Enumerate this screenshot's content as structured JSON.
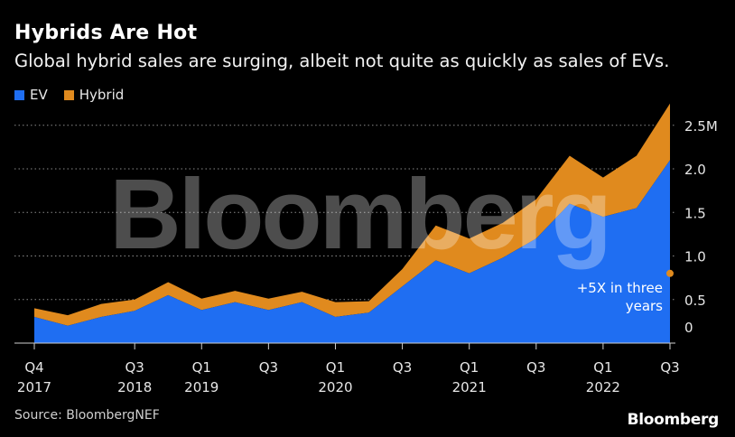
{
  "header": {
    "title": "Hybrids Are Hot",
    "subtitle": "Global hybrid sales are surging, albeit not quite as quickly as sales of EVs."
  },
  "legend": [
    {
      "label": "EV",
      "color": "#1f6ef2"
    },
    {
      "label": "Hybrid",
      "color": "#e08a1e"
    }
  ],
  "footer": {
    "source": "Source: BloombergNEF",
    "brand": "Bloomberg"
  },
  "watermark": "Bloomberg",
  "chart_data": {
    "type": "area",
    "stacked": true,
    "x": [
      "Q4 2017",
      "Q1 2018",
      "Q2 2018",
      "Q3 2018",
      "Q4 2018",
      "Q1 2019",
      "Q2 2019",
      "Q3 2019",
      "Q4 2019",
      "Q1 2020",
      "Q2 2020",
      "Q3 2020",
      "Q4 2020",
      "Q1 2021",
      "Q2 2021",
      "Q3 2021",
      "Q4 2021",
      "Q1 2022",
      "Q2 2022",
      "Q3 2022"
    ],
    "x_tick_labels": [
      {
        "x": "Q4 2017",
        "top": "Q4",
        "bottom": "2017"
      },
      {
        "x": "Q3 2018",
        "top": "Q3",
        "bottom": "2018"
      },
      {
        "x": "Q1 2019",
        "top": "Q1",
        "bottom": "2019"
      },
      {
        "x": "Q3 2019",
        "top": "Q3",
        "bottom": ""
      },
      {
        "x": "Q1 2020",
        "top": "Q1",
        "bottom": "2020"
      },
      {
        "x": "Q3 2020",
        "top": "Q3",
        "bottom": ""
      },
      {
        "x": "Q1 2021",
        "top": "Q1",
        "bottom": "2021"
      },
      {
        "x": "Q3 2021",
        "top": "Q3",
        "bottom": ""
      },
      {
        "x": "Q1 2022",
        "top": "Q1",
        "bottom": "2022"
      },
      {
        "x": "Q3 2022",
        "top": "Q3",
        "bottom": ""
      }
    ],
    "series": [
      {
        "name": "EV",
        "color": "#1f6ef2",
        "values": [
          0.3,
          0.2,
          0.3,
          0.37,
          0.55,
          0.38,
          0.47,
          0.38,
          0.47,
          0.3,
          0.35,
          0.65,
          0.95,
          0.8,
          0.98,
          1.2,
          1.6,
          1.45,
          1.55,
          2.1
        ]
      },
      {
        "name": "Hybrid",
        "color": "#e08a1e",
        "values": [
          0.1,
          0.12,
          0.15,
          0.13,
          0.15,
          0.13,
          0.13,
          0.13,
          0.12,
          0.17,
          0.13,
          0.2,
          0.4,
          0.4,
          0.4,
          0.45,
          0.55,
          0.45,
          0.6,
          0.65
        ]
      }
    ],
    "y_ticks": [
      {
        "value": 0,
        "label": "0"
      },
      {
        "value": 0.5,
        "label": "0.5"
      },
      {
        "value": 1.0,
        "label": "1.0"
      },
      {
        "value": 1.5,
        "label": "1.5"
      },
      {
        "value": 2.0,
        "label": "2.0"
      },
      {
        "value": 2.5,
        "label": "2.5M"
      }
    ],
    "ylim": [
      0,
      2.85
    ],
    "grid": true,
    "legend_position": "top-left",
    "annotation": {
      "text": [
        "+5X in three",
        "years"
      ],
      "value": 0.8,
      "color": "#e08a1e"
    }
  }
}
